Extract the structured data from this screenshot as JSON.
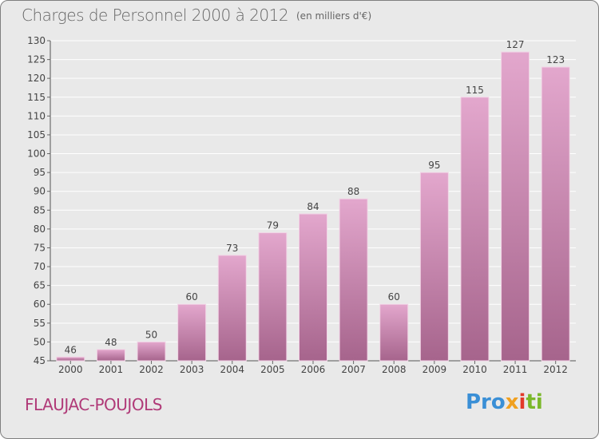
{
  "title": "Charges de Personnel 2000 à 2012",
  "subtitle": "(en milliers d'€)",
  "commune": "FLAUJAC-POUJOLS",
  "logo": {
    "p1": "Pro",
    "p2": "x",
    "p3": "i",
    "p4": "ti"
  },
  "colors": {
    "bar_light": "#e3a7cd",
    "bar_dark": "#a6648c",
    "grid": "#ffffff",
    "text": "#444444",
    "commune": "#b03a78"
  },
  "chart_data": {
    "type": "bar",
    "categories": [
      "2000",
      "2001",
      "2002",
      "2003",
      "2004",
      "2005",
      "2006",
      "2007",
      "2008",
      "2009",
      "2010",
      "2011",
      "2012"
    ],
    "values": [
      46,
      48,
      50,
      60,
      73,
      79,
      84,
      88,
      60,
      95,
      115,
      127,
      123
    ],
    "ylim": [
      45,
      130
    ],
    "yticks": [
      45,
      50,
      55,
      60,
      65,
      70,
      75,
      80,
      85,
      90,
      95,
      100,
      105,
      110,
      115,
      120,
      125,
      130
    ],
    "grid": true
  }
}
